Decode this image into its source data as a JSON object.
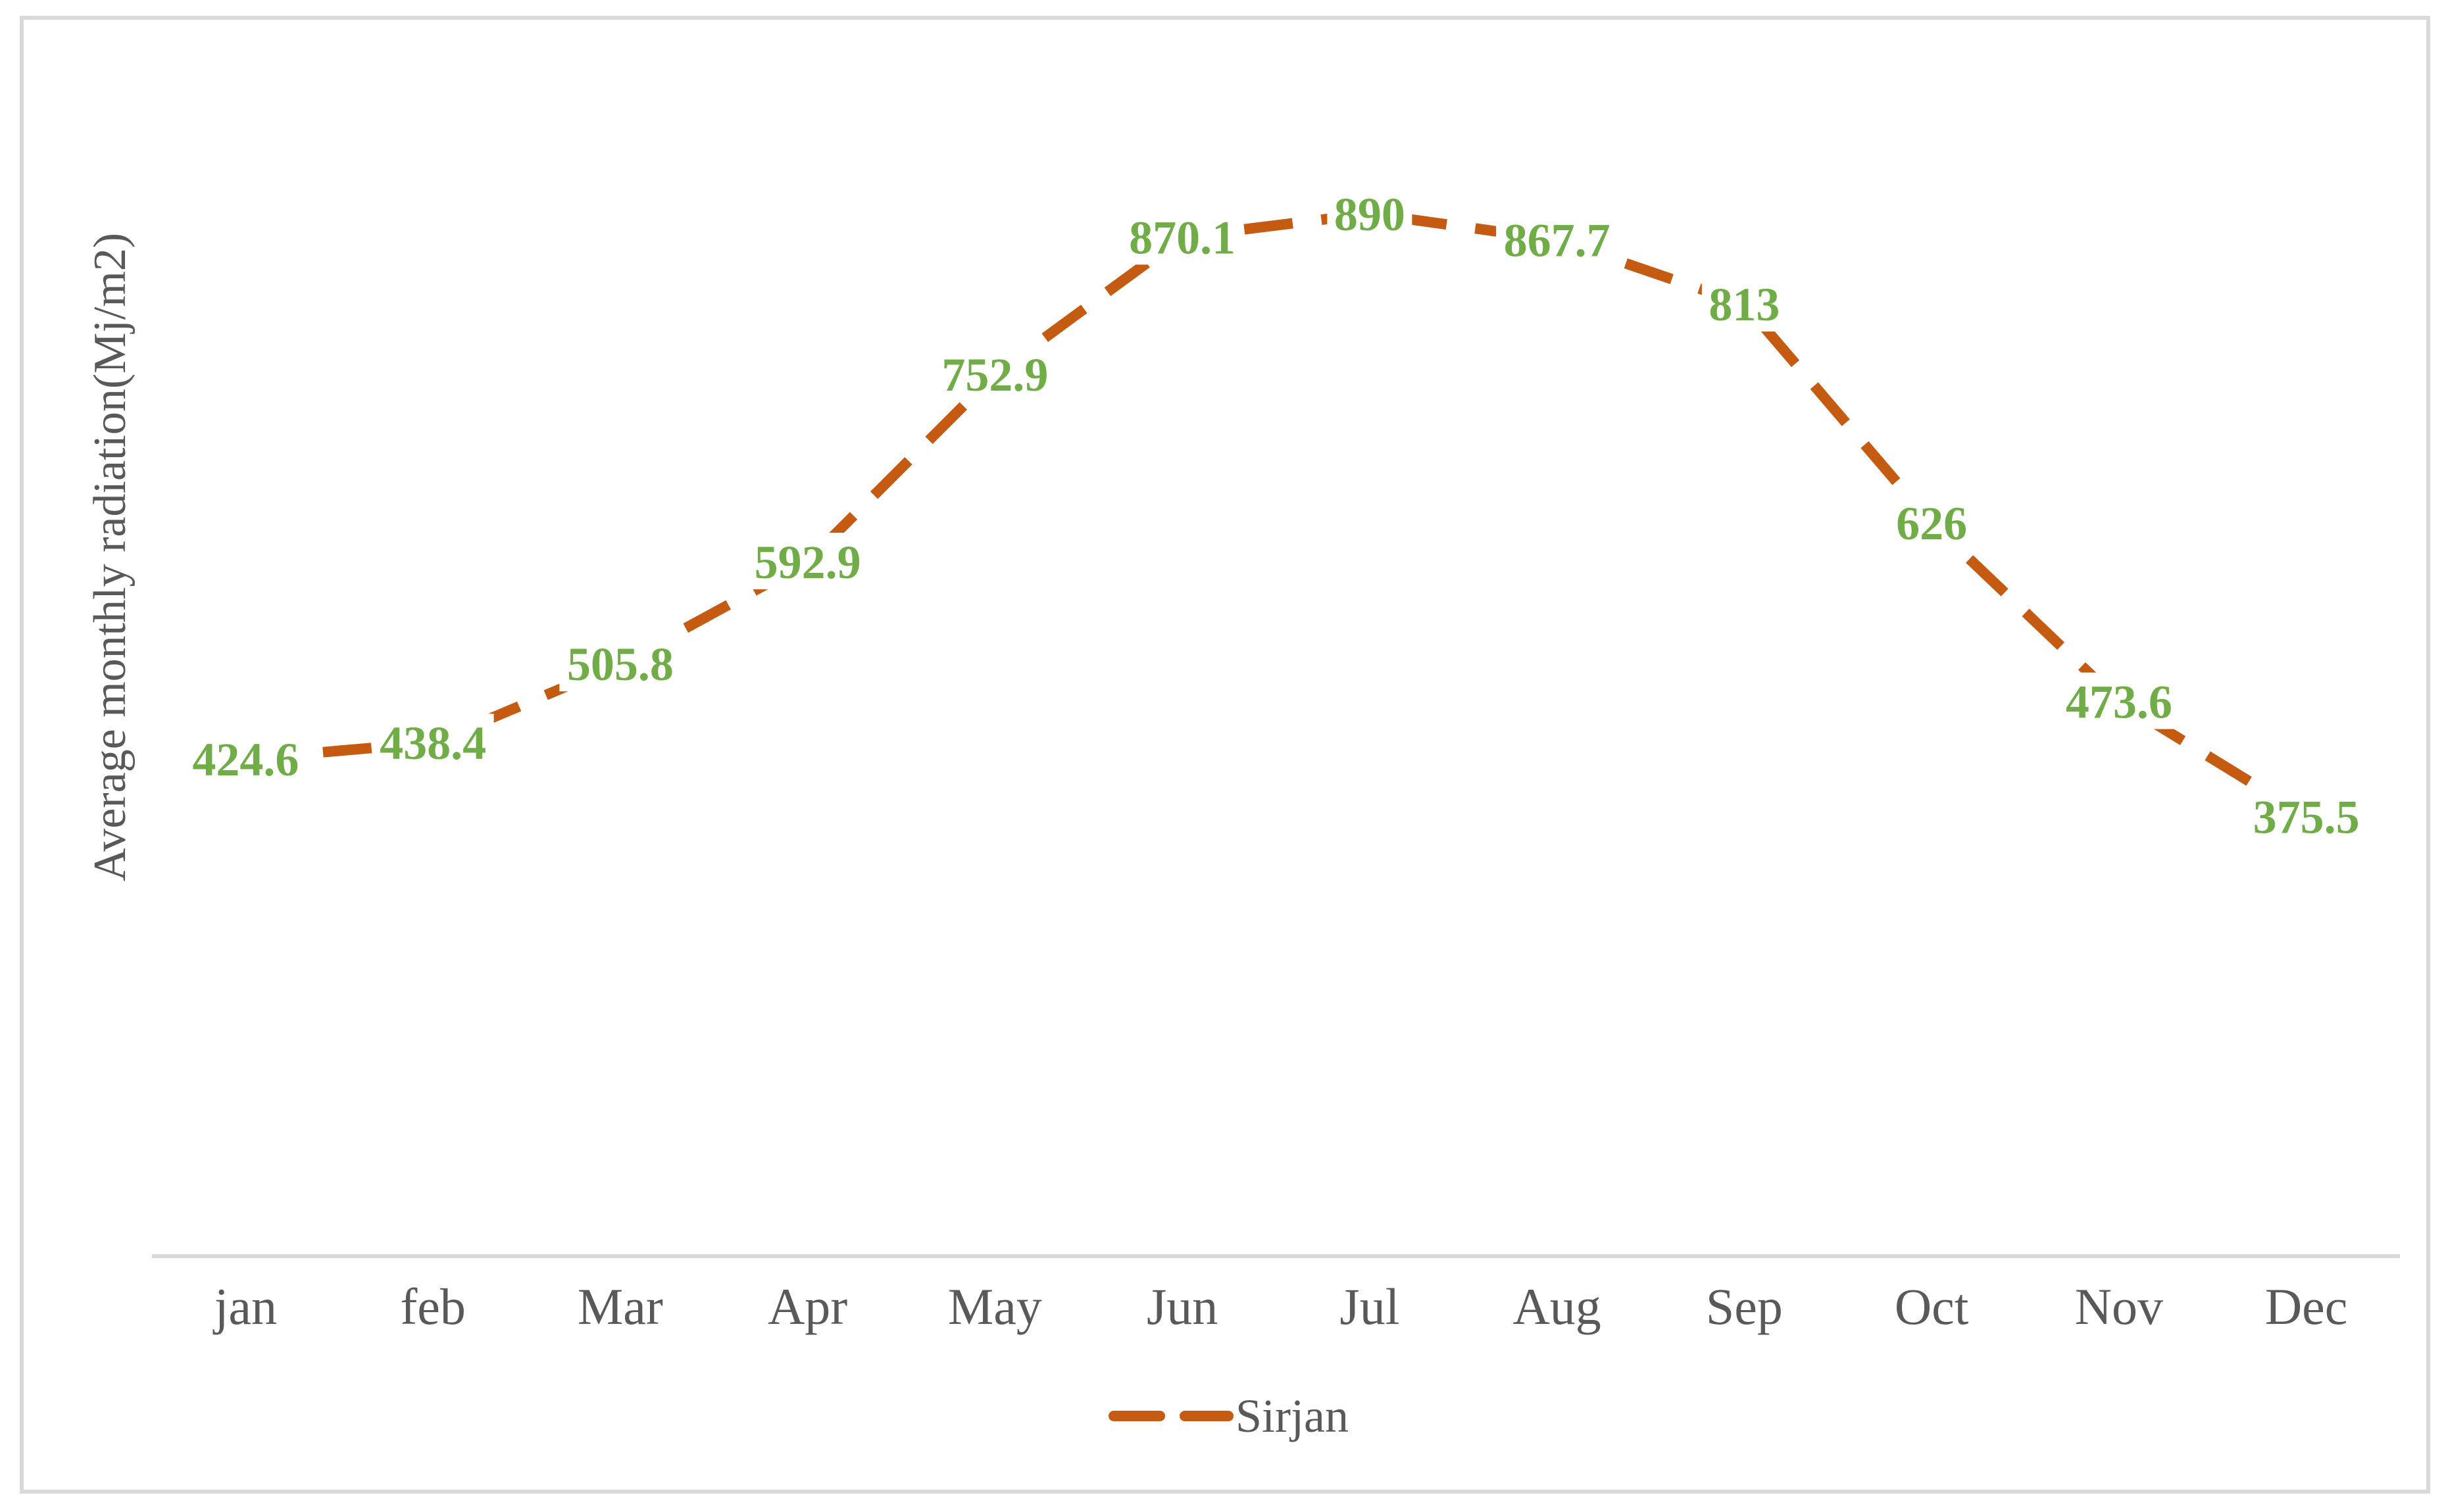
{
  "chart_data": {
    "type": "line",
    "title": "",
    "xlabel": "",
    "ylabel": "Average monthly radiation(Mj/m2)",
    "categories": [
      "jan",
      "feb",
      "Mar",
      "Apr",
      "May",
      "Jun",
      "Jul",
      "Aug",
      "Sep",
      "Oct",
      "Nov",
      "Dec"
    ],
    "series": [
      {
        "name": "Sirjan",
        "values": [
          424.6,
          438.4,
          505.8,
          592.9,
          752.9,
          870.1,
          890,
          867.7,
          813,
          626,
          473.6,
          375.5
        ]
      }
    ],
    "data_labels": [
      "424.6",
      "438.4",
      "505.8",
      "592.9",
      "752.9",
      "870.1",
      "890",
      "867.7",
      "813",
      "626",
      "473.6",
      "375.5"
    ],
    "ylim": [
      0,
      1000
    ],
    "grid": false,
    "legend_position": "bottom",
    "line_style": "dashed",
    "colors": {
      "line": "#C55A11",
      "data_label": "#70AD47",
      "axis_text": "#595959",
      "axis_line": "#D9D9D9",
      "frame_border": "#D9D9D9",
      "background": "#FFFFFF"
    }
  }
}
